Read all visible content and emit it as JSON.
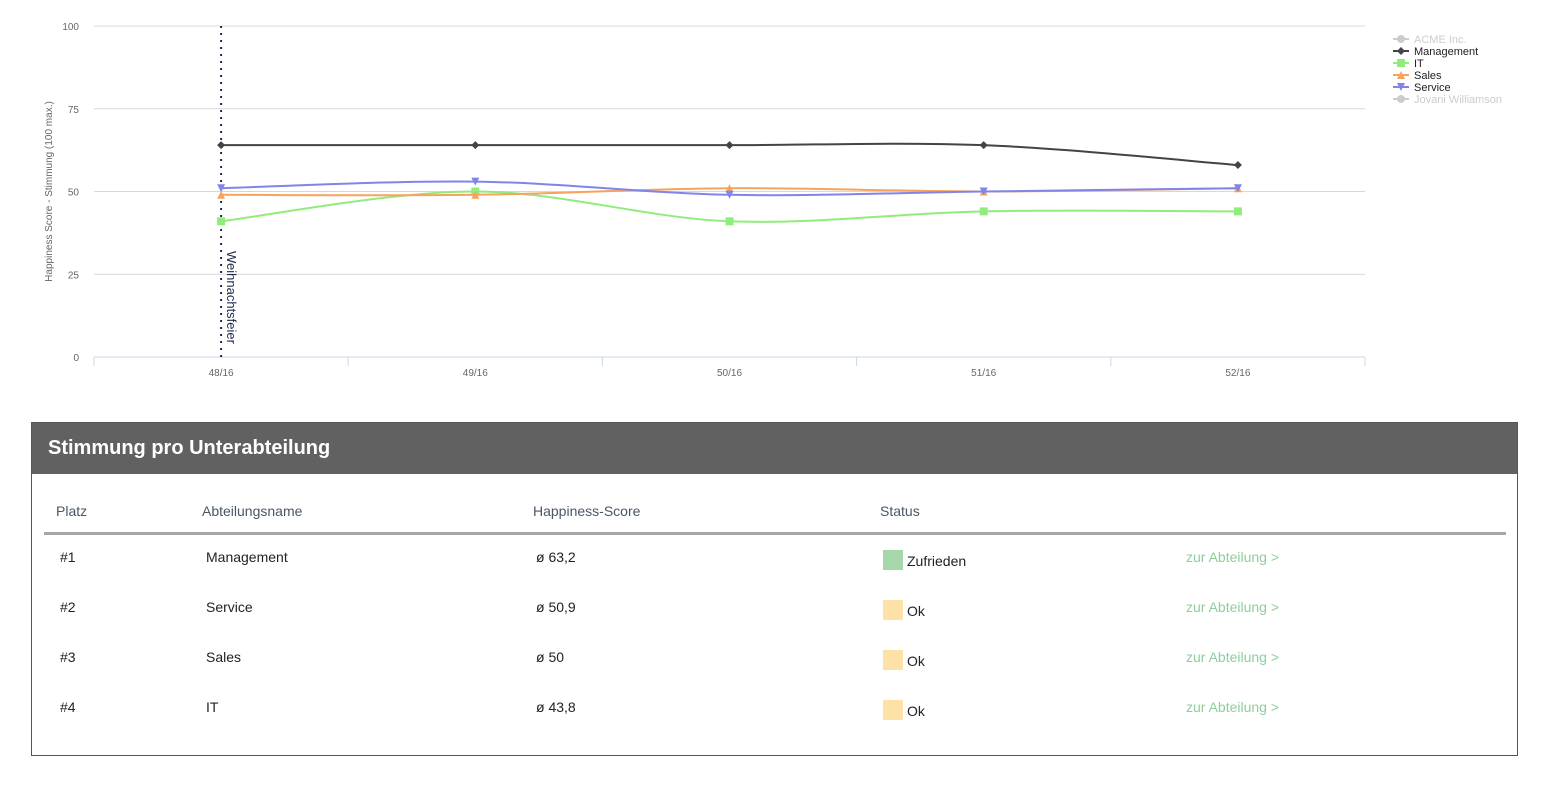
{
  "chart_data": {
    "type": "line",
    "x": [
      "48/16",
      "49/16",
      "50/16",
      "51/16",
      "52/16"
    ],
    "ylabel": "Happiness Score - Stimmung (100 max.)",
    "ylim": [
      0,
      100
    ],
    "yticks": [
      "0",
      "25",
      "50",
      "75",
      "100"
    ],
    "grid": true,
    "legend_position": "top-right",
    "annotation": {
      "x": "48/16",
      "label": "Weihnachtsfeier"
    },
    "series": [
      {
        "name": "ACME Inc.",
        "hidden": true,
        "color": "#cccccc",
        "marker": "circle",
        "values": null
      },
      {
        "name": "Management",
        "color": "#434348",
        "marker": "diamond",
        "values": [
          64,
          64,
          64,
          64,
          58
        ]
      },
      {
        "name": "IT",
        "color": "#90ed7d",
        "marker": "square",
        "values": [
          41,
          50,
          41,
          44,
          44
        ]
      },
      {
        "name": "Sales",
        "color": "#f7a35c",
        "marker": "triangle",
        "values": [
          49,
          49,
          51,
          50,
          51
        ]
      },
      {
        "name": "Service",
        "color": "#8085e9",
        "marker": "triangle-down",
        "values": [
          51,
          53,
          49,
          50,
          51
        ]
      },
      {
        "name": "Jovani Williamson",
        "hidden": true,
        "color": "#cccccc",
        "marker": "circle",
        "values": null
      }
    ]
  },
  "table": {
    "title": "Stimmung pro Unterabteilung",
    "headers": {
      "rank": "Platz",
      "name": "Abteilungsname",
      "score": "Happiness-Score",
      "status": "Status"
    },
    "status_colors": {
      "Zufrieden": "#a7d7a8",
      "Ok": "#fde1a6"
    },
    "rows": [
      {
        "rank": "#1",
        "name": "Management",
        "score": "ø 63,2",
        "status": "Zufrieden",
        "status_color": "#a7d7a8",
        "link": "zur Abteilung >"
      },
      {
        "rank": "#2",
        "name": "Service",
        "score": "ø 50,9",
        "status": "Ok",
        "status_color": "#fde1a6",
        "link": "zur Abteilung >"
      },
      {
        "rank": "#3",
        "name": "Sales",
        "score": "ø 50",
        "status": "Ok",
        "status_color": "#fde1a6",
        "link": "zur Abteilung >"
      },
      {
        "rank": "#4",
        "name": "IT",
        "score": "ø 43,8",
        "status": "Ok",
        "status_color": "#fde1a6",
        "link": "zur Abteilung >"
      }
    ]
  }
}
